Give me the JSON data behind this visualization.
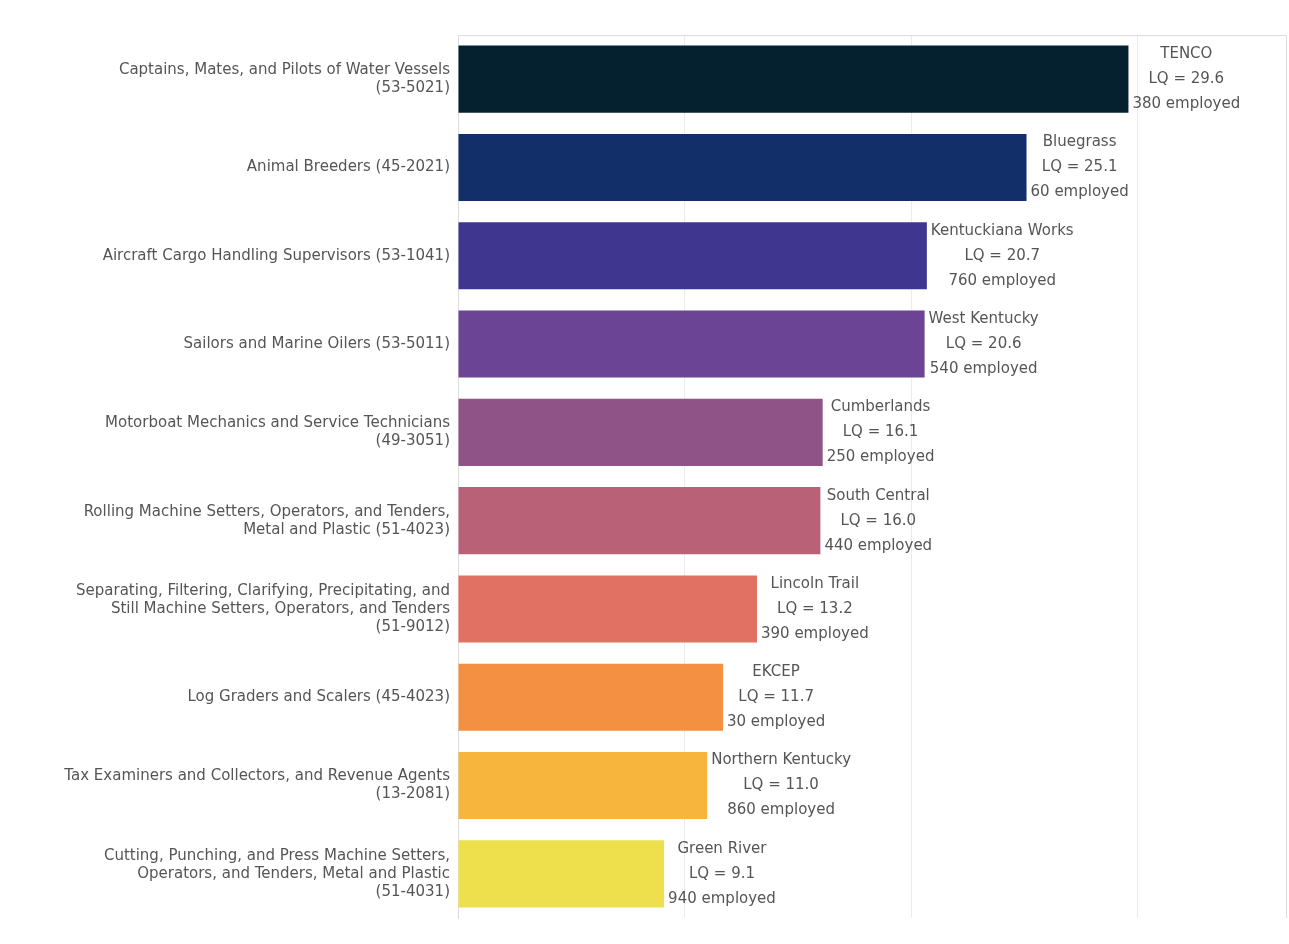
{
  "chart_data": {
    "type": "bar",
    "orientation": "horizontal",
    "categories": [
      "Captains, Mates, and Pilots of Water Vessels (53-5021)",
      "Animal Breeders (45-2021)",
      "Aircraft Cargo Handling Supervisors (53-1041)",
      "Sailors and Marine Oilers (53-5011)",
      "Motorboat Mechanics and Service Technicians (49-3051)",
      "Rolling Machine Setters, Operators, and Tenders, Metal and Plastic (51-4023)",
      "Separating, Filtering, Clarifying, Precipitating, and Still Machine Setters, Operators, and Tenders (51-9012)",
      "Log Graders and Scalers (45-4023)",
      "Tax Examiners and Collectors, and Revenue Agents (13-2081)",
      "Cutting, Punching, and Press Machine Setters, Operators, and Tenders, Metal and Plastic (51-4031)"
    ],
    "values": [
      29.6,
      25.1,
      20.7,
      20.6,
      16.1,
      16.0,
      13.2,
      11.7,
      11.0,
      9.1
    ],
    "colors": [
      "#05202f",
      "#132f6a",
      "#3f378f",
      "#6b4496",
      "#8f5387",
      "#b96177",
      "#e07163",
      "#f39042",
      "#f7b53e",
      "#ede04c"
    ],
    "value_labels": [
      "LQ = 29.6",
      "LQ = 25.1",
      "LQ = 20.7",
      "LQ = 20.6",
      "LQ = 16.1",
      "LQ = 16.0",
      "LQ = 13.2",
      "LQ = 11.7",
      "LQ = 11.0",
      "LQ = 9.1"
    ],
    "annotations": [
      {
        "text": "TENCO",
        "x": 29.6,
        "y": "Captains, Mates, and Pilots of Water Vessels (53-5021)"
      },
      {
        "text": "380 employed",
        "x": 29.6,
        "y": "Captains, Mates, and Pilots of Water Vessels (53-5021)"
      },
      {
        "text": "Bluegrass",
        "x": 25.1,
        "y": "Animal Breeders (45-2021)"
      },
      {
        "text": "60 employed",
        "x": 25.1,
        "y": "Animal Breeders (45-2021)"
      },
      {
        "text": "Kentuckiana Works",
        "x": 20.7,
        "y": "Aircraft Cargo Handling Supervisors (53-1041)"
      },
      {
        "text": "760 employed",
        "x": 20.7,
        "y": "Aircraft Cargo Handling Supervisors (53-1041)"
      },
      {
        "text": "West Kentucky",
        "x": 20.6,
        "y": "Sailors and Marine Oilers (53-5011)"
      },
      {
        "text": "540 employed",
        "x": 20.6,
        "y": "Sailors and Marine Oilers (53-5011)"
      },
      {
        "text": "Cumberlands",
        "x": 16.1,
        "y": "Motorboat Mechanics and Service Technicians (49-3051)"
      },
      {
        "text": "250 employed",
        "x": 16.1,
        "y": "Motorboat Mechanics and Service Technicians (49-3051)"
      },
      {
        "text": "South Central",
        "x": 16.0,
        "y": "Rolling Machine Setters, Operators, and Tenders, Metal and Plastic (51-4023)"
      },
      {
        "text": "440 employed",
        "x": 16.0,
        "y": "Rolling Machine Setters, Operators, and Tenders, Metal and Plastic (51-4023)"
      },
      {
        "text": "Lincoln Trail",
        "x": 13.2,
        "y": "Separating, Filtering, Clarifying, Precipitating, and Still Machine Setters, Operators, and Tenders (51-9012)"
      },
      {
        "text": "390 employed",
        "x": 13.2,
        "y": "Separating, Filtering, Clarifying, Precipitating, and Still Machine Setters, Operators, and Tenders (51-9012)"
      },
      {
        "text": "EKCEP",
        "x": 11.7,
        "y": "Log Graders and Scalers (45-4023)"
      },
      {
        "text": "30 employed",
        "x": 11.7,
        "y": "Log Graders and Scalers (45-4023)"
      },
      {
        "text": "Northern Kentucky",
        "x": 11.0,
        "y": "Tax Examiners and Collectors, and Revenue Agents (13-2081)"
      },
      {
        "text": "860 employed",
        "x": 11.0,
        "y": "Tax Examiners and Collectors, and Revenue Agents (13-2081)"
      },
      {
        "text": "Green River",
        "x": 9.1,
        "y": "Cutting, Punching, and Press Machine Setters, Operators, and Tenders, Metal and Plastic (51-4031)"
      },
      {
        "text": "940 employed",
        "x": 9.1,
        "y": "Cutting, Punching, and Press Machine Setters, Operators, and Tenders, Metal and Plastic (51-4031)"
      }
    ],
    "xlim": [
      0,
      36.6
    ],
    "xticks": [
      {
        "value": 0,
        "label": null
      },
      {
        "value": 10,
        "label": null
      },
      {
        "value": 20,
        "label": null
      },
      {
        "value": 30,
        "label": null
      }
    ],
    "grid": "x",
    "tick_labels": "y",
    "legend": false
  }
}
